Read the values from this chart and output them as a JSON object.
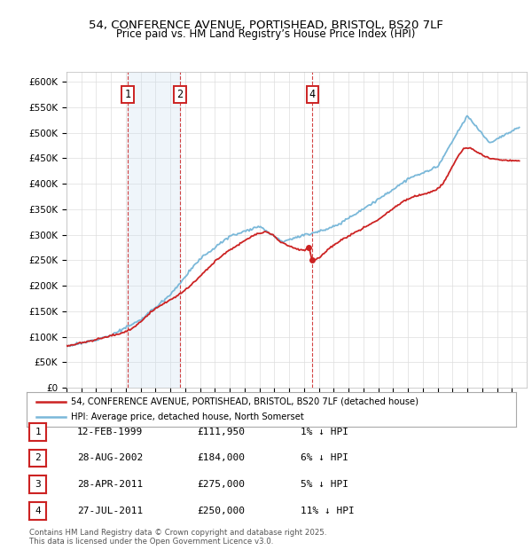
{
  "title": "54, CONFERENCE AVENUE, PORTISHEAD, BRISTOL, BS20 7LF",
  "subtitle": "Price paid vs. HM Land Registry’s House Price Index (HPI)",
  "transactions": [
    {
      "num": 1,
      "date": "12-FEB-1999",
      "price": 111950,
      "date_val": 1999.12,
      "pct": "1% ↓ HPI"
    },
    {
      "num": 2,
      "date": "28-AUG-2002",
      "price": 184000,
      "date_val": 2002.65,
      "pct": "6% ↓ HPI"
    },
    {
      "num": 3,
      "date": "28-APR-2011",
      "price": 275000,
      "date_val": 2011.32,
      "pct": "5% ↓ HPI"
    },
    {
      "num": 4,
      "date": "27-JUL-2011",
      "price": 250000,
      "date_val": 2011.57,
      "pct": "11% ↓ HPI"
    }
  ],
  "legend_line1": "54, CONFERENCE AVENUE, PORTISHEAD, BRISTOL, BS20 7LF (detached house)",
  "legend_line2": "HPI: Average price, detached house, North Somerset",
  "footer": "Contains HM Land Registry data © Crown copyright and database right 2025.\nThis data is licensed under the Open Government Licence v3.0.",
  "hpi_line_color": "#7ab8d9",
  "price_line_color": "#cc2222",
  "marker_color": "#cc2222",
  "annotation_box_color": "#cc2222",
  "shaded_region_color": "#cce0f0",
  "ylim": [
    0,
    620000
  ],
  "yticks": [
    0,
    50000,
    100000,
    150000,
    200000,
    250000,
    300000,
    350000,
    400000,
    450000,
    500000,
    550000,
    600000
  ],
  "year_start": 1995,
  "year_end": 2026,
  "table_rows": [
    {
      "num": "1",
      "date": "12-FEB-1999",
      "price": "£111,950",
      "pct": "1% ↓ HPI"
    },
    {
      "num": "2",
      "date": "28-AUG-2002",
      "price": "£184,000",
      "pct": "6% ↓ HPI"
    },
    {
      "num": "3",
      "date": "28-APR-2011",
      "price": "£275,000",
      "pct": "5% ↓ HPI"
    },
    {
      "num": "4",
      "date": "27-JUL-2011",
      "price": "£250,000",
      "pct": "11% ↓ HPI"
    }
  ]
}
